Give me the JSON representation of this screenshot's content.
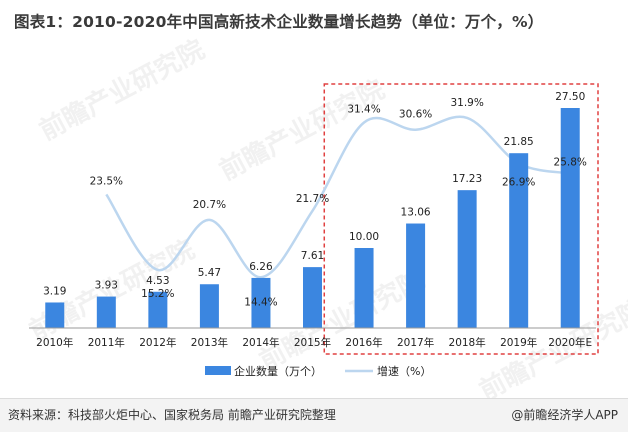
{
  "title": "图表1：2010-2020年中国高新技术企业数量增长趋势（单位：万个，%）",
  "watermark": "前瞻产业研究院",
  "footer": {
    "source": "资料来源：科技部火炬中心、国家税务局 前瞻产业研究院整理",
    "brand": "@前瞻经济学人APP"
  },
  "colors": {
    "bar": "#3b86e0",
    "line": "#bcd6ef",
    "highlight_box": "#e04040"
  },
  "chart_data": {
    "type": "bar",
    "categories": [
      "2010年",
      "2011年",
      "2012年",
      "2013年",
      "2014年",
      "2015年",
      "2016年",
      "2017年",
      "2018年",
      "2019年",
      "2020年E"
    ],
    "series": [
      {
        "name": "企业数量（万个）",
        "type": "bar",
        "values": [
          3.19,
          3.93,
          4.53,
          5.47,
          6.26,
          7.61,
          10.0,
          13.06,
          17.23,
          21.85,
          27.5
        ],
        "labels": [
          "3.19",
          "3.93",
          "4.53",
          "5.47",
          "6.26",
          "7.61",
          "10.00",
          "13.06",
          "17.23",
          "21.85",
          "27.50"
        ]
      },
      {
        "name": "增速（%）",
        "type": "line",
        "values": [
          null,
          23.5,
          15.2,
          20.7,
          14.4,
          21.7,
          31.4,
          30.6,
          31.9,
          26.9,
          25.8
        ],
        "labels": [
          "",
          "23.5%",
          "15.2%",
          "20.7%",
          "14.4%",
          "21.7%",
          "31.4%",
          "30.6%",
          "31.9%",
          "26.9%",
          "25.8%"
        ]
      }
    ],
    "highlight": "2016年-2020年E",
    "legend_position": "bottom",
    "grid": false
  }
}
